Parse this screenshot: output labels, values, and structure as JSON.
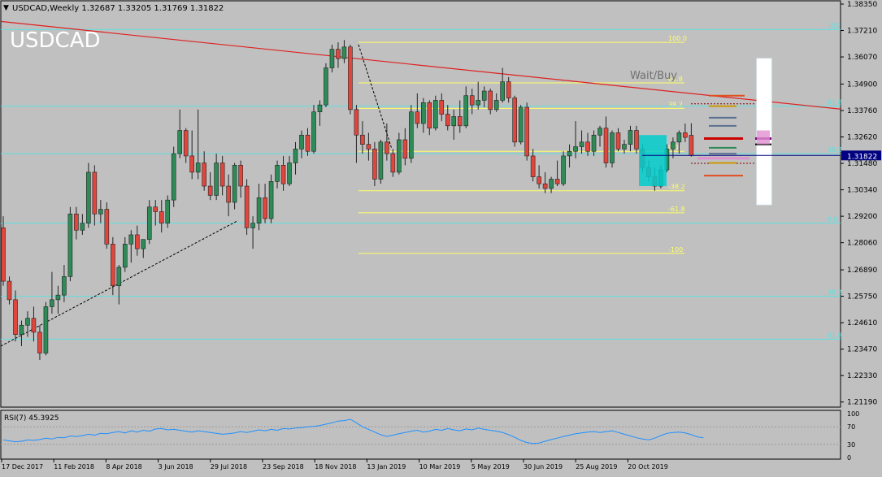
{
  "header": {
    "symbol_line": "USDCAD,Weekly  1.32687 1.33205 1.31769 1.31822",
    "watermark": "USDCAD",
    "signal_text": "Wait/Buy"
  },
  "price_axis": {
    "ticks": [
      "1.38350",
      "1.37210",
      "1.36070",
      "1.34900",
      "1.33760",
      "1.32620",
      "1.31480",
      "1.30340",
      "1.29200",
      "1.28060",
      "1.26890",
      "1.25750",
      "1.24610",
      "1.23470",
      "1.22330",
      "1.21190"
    ],
    "current_price_label": "1.31822"
  },
  "time_axis": {
    "labels": [
      "17 Dec 2017",
      "11 Feb 2018",
      "8 Apr 2018",
      "3 Jun 2018",
      "29 Jul 2018",
      "23 Sep 2018",
      "18 Nov 2018",
      "13 Jan 2019",
      "10 Mar 2019",
      "5 May 2019",
      "30 Jun 2019",
      "25 Aug 2019",
      "20 Oct 2019"
    ]
  },
  "fib_labels": {
    "main": [
      "100.0",
      "61.8",
      "38.2",
      "0.0",
      "-38.2",
      "-61.8",
      "-100"
    ],
    "cyan": [
      "100",
      "61.8",
      "38.2",
      "0.0",
      "38.2",
      "61.8"
    ]
  },
  "rsi": {
    "title": "RSI(7) 45.3925",
    "levels": [
      "100",
      "70",
      "30",
      "0"
    ],
    "values": [
      40,
      38,
      36,
      37,
      40,
      39,
      41,
      44,
      42,
      46,
      45,
      49,
      48,
      50,
      53,
      51,
      55,
      54,
      57,
      59,
      56,
      61,
      58,
      62,
      60,
      65,
      66,
      63,
      64,
      62,
      60,
      58,
      61,
      59,
      57,
      55,
      53,
      54,
      56,
      59,
      57,
      60,
      63,
      61,
      64,
      62,
      66,
      65,
      67,
      68,
      70,
      71,
      73,
      76,
      79,
      83,
      84,
      87,
      79,
      70,
      64,
      58,
      52,
      48,
      51,
      54,
      57,
      60,
      62,
      58,
      60,
      64,
      62,
      66,
      63,
      61,
      65,
      63,
      67,
      64,
      62,
      60,
      57,
      52,
      46,
      39,
      34,
      32,
      33,
      37,
      41,
      44,
      48,
      51,
      54,
      56,
      58,
      59,
      57,
      59,
      61,
      57,
      53,
      49,
      45,
      42,
      40,
      44,
      50,
      55,
      57,
      58,
      56,
      52,
      47,
      45
    ]
  },
  "chart_data": {
    "type": "candlestick",
    "title": "USDCAD,Weekly",
    "ylim": [
      1.2097,
      1.3849
    ],
    "candles": [
      {
        "o": 1.287,
        "h": 1.292,
        "l": 1.262,
        "c": 1.264
      },
      {
        "o": 1.264,
        "h": 1.266,
        "l": 1.254,
        "c": 1.256
      },
      {
        "o": 1.256,
        "h": 1.26,
        "l": 1.238,
        "c": 1.241
      },
      {
        "o": 1.241,
        "h": 1.247,
        "l": 1.236,
        "c": 1.245
      },
      {
        "o": 1.245,
        "h": 1.251,
        "l": 1.24,
        "c": 1.248
      },
      {
        "o": 1.248,
        "h": 1.253,
        "l": 1.238,
        "c": 1.242
      },
      {
        "o": 1.242,
        "h": 1.245,
        "l": 1.23,
        "c": 1.233
      },
      {
        "o": 1.233,
        "h": 1.255,
        "l": 1.232,
        "c": 1.253
      },
      {
        "o": 1.253,
        "h": 1.268,
        "l": 1.25,
        "c": 1.256
      },
      {
        "o": 1.256,
        "h": 1.262,
        "l": 1.25,
        "c": 1.258
      },
      {
        "o": 1.258,
        "h": 1.271,
        "l": 1.255,
        "c": 1.266
      },
      {
        "o": 1.266,
        "h": 1.296,
        "l": 1.264,
        "c": 1.293
      },
      {
        "o": 1.293,
        "h": 1.296,
        "l": 1.282,
        "c": 1.286
      },
      {
        "o": 1.286,
        "h": 1.293,
        "l": 1.284,
        "c": 1.289
      },
      {
        "o": 1.289,
        "h": 1.315,
        "l": 1.287,
        "c": 1.311
      },
      {
        "o": 1.311,
        "h": 1.314,
        "l": 1.288,
        "c": 1.293
      },
      {
        "o": 1.293,
        "h": 1.299,
        "l": 1.289,
        "c": 1.295
      },
      {
        "o": 1.295,
        "h": 1.298,
        "l": 1.278,
        "c": 1.28
      },
      {
        "o": 1.28,
        "h": 1.283,
        "l": 1.258,
        "c": 1.262
      },
      {
        "o": 1.262,
        "h": 1.271,
        "l": 1.254,
        "c": 1.27
      },
      {
        "o": 1.27,
        "h": 1.283,
        "l": 1.268,
        "c": 1.28
      },
      {
        "o": 1.28,
        "h": 1.286,
        "l": 1.272,
        "c": 1.284
      },
      {
        "o": 1.284,
        "h": 1.288,
        "l": 1.275,
        "c": 1.278
      },
      {
        "o": 1.278,
        "h": 1.282,
        "l": 1.274,
        "c": 1.282
      },
      {
        "o": 1.282,
        "h": 1.299,
        "l": 1.28,
        "c": 1.296
      },
      {
        "o": 1.296,
        "h": 1.299,
        "l": 1.288,
        "c": 1.294
      },
      {
        "o": 1.294,
        "h": 1.299,
        "l": 1.285,
        "c": 1.289
      },
      {
        "o": 1.289,
        "h": 1.301,
        "l": 1.287,
        "c": 1.299
      },
      {
        "o": 1.299,
        "h": 1.322,
        "l": 1.296,
        "c": 1.319
      },
      {
        "o": 1.319,
        "h": 1.338,
        "l": 1.317,
        "c": 1.329
      },
      {
        "o": 1.329,
        "h": 1.33,
        "l": 1.315,
        "c": 1.318
      },
      {
        "o": 1.318,
        "h": 1.329,
        "l": 1.308,
        "c": 1.311
      },
      {
        "o": 1.311,
        "h": 1.338,
        "l": 1.308,
        "c": 1.315
      },
      {
        "o": 1.315,
        "h": 1.32,
        "l": 1.303,
        "c": 1.305
      },
      {
        "o": 1.305,
        "h": 1.311,
        "l": 1.299,
        "c": 1.301
      },
      {
        "o": 1.301,
        "h": 1.319,
        "l": 1.299,
        "c": 1.315
      },
      {
        "o": 1.315,
        "h": 1.318,
        "l": 1.301,
        "c": 1.305
      },
      {
        "o": 1.305,
        "h": 1.31,
        "l": 1.292,
        "c": 1.298
      },
      {
        "o": 1.298,
        "h": 1.315,
        "l": 1.295,
        "c": 1.314
      },
      {
        "o": 1.314,
        "h": 1.316,
        "l": 1.3,
        "c": 1.305
      },
      {
        "o": 1.305,
        "h": 1.308,
        "l": 1.284,
        "c": 1.287
      },
      {
        "o": 1.287,
        "h": 1.292,
        "l": 1.278,
        "c": 1.289
      },
      {
        "o": 1.289,
        "h": 1.306,
        "l": 1.286,
        "c": 1.3
      },
      {
        "o": 1.3,
        "h": 1.306,
        "l": 1.289,
        "c": 1.291
      },
      {
        "o": 1.291,
        "h": 1.31,
        "l": 1.289,
        "c": 1.307
      },
      {
        "o": 1.307,
        "h": 1.316,
        "l": 1.304,
        "c": 1.314
      },
      {
        "o": 1.314,
        "h": 1.318,
        "l": 1.303,
        "c": 1.306
      },
      {
        "o": 1.306,
        "h": 1.318,
        "l": 1.305,
        "c": 1.315
      },
      {
        "o": 1.315,
        "h": 1.324,
        "l": 1.31,
        "c": 1.321
      },
      {
        "o": 1.321,
        "h": 1.329,
        "l": 1.317,
        "c": 1.327
      },
      {
        "o": 1.327,
        "h": 1.33,
        "l": 1.318,
        "c": 1.32
      },
      {
        "o": 1.32,
        "h": 1.34,
        "l": 1.319,
        "c": 1.337
      },
      {
        "o": 1.337,
        "h": 1.342,
        "l": 1.331,
        "c": 1.34
      },
      {
        "o": 1.34,
        "h": 1.358,
        "l": 1.339,
        "c": 1.356
      },
      {
        "o": 1.356,
        "h": 1.366,
        "l": 1.354,
        "c": 1.364
      },
      {
        "o": 1.364,
        "h": 1.367,
        "l": 1.356,
        "c": 1.36
      },
      {
        "o": 1.36,
        "h": 1.368,
        "l": 1.358,
        "c": 1.365
      },
      {
        "o": 1.365,
        "h": 1.366,
        "l": 1.336,
        "c": 1.338
      },
      {
        "o": 1.338,
        "h": 1.34,
        "l": 1.315,
        "c": 1.327
      },
      {
        "o": 1.327,
        "h": 1.333,
        "l": 1.319,
        "c": 1.323
      },
      {
        "o": 1.323,
        "h": 1.328,
        "l": 1.316,
        "c": 1.321
      },
      {
        "o": 1.321,
        "h": 1.324,
        "l": 1.305,
        "c": 1.308
      },
      {
        "o": 1.308,
        "h": 1.325,
        "l": 1.306,
        "c": 1.324
      },
      {
        "o": 1.324,
        "h": 1.332,
        "l": 1.316,
        "c": 1.319
      },
      {
        "o": 1.319,
        "h": 1.321,
        "l": 1.309,
        "c": 1.311
      },
      {
        "o": 1.311,
        "h": 1.328,
        "l": 1.31,
        "c": 1.325
      },
      {
        "o": 1.325,
        "h": 1.33,
        "l": 1.314,
        "c": 1.317
      },
      {
        "o": 1.317,
        "h": 1.34,
        "l": 1.315,
        "c": 1.337
      },
      {
        "o": 1.337,
        "h": 1.345,
        "l": 1.33,
        "c": 1.332
      },
      {
        "o": 1.332,
        "h": 1.343,
        "l": 1.328,
        "c": 1.341
      },
      {
        "o": 1.341,
        "h": 1.342,
        "l": 1.327,
        "c": 1.33
      },
      {
        "o": 1.33,
        "h": 1.344,
        "l": 1.329,
        "c": 1.342
      },
      {
        "o": 1.342,
        "h": 1.345,
        "l": 1.333,
        "c": 1.336
      },
      {
        "o": 1.336,
        "h": 1.34,
        "l": 1.329,
        "c": 1.331
      },
      {
        "o": 1.331,
        "h": 1.338,
        "l": 1.325,
        "c": 1.335
      },
      {
        "o": 1.335,
        "h": 1.342,
        "l": 1.328,
        "c": 1.331
      },
      {
        "o": 1.331,
        "h": 1.348,
        "l": 1.33,
        "c": 1.344
      },
      {
        "o": 1.344,
        "h": 1.347,
        "l": 1.336,
        "c": 1.34
      },
      {
        "o": 1.34,
        "h": 1.35,
        "l": 1.338,
        "c": 1.342
      },
      {
        "o": 1.342,
        "h": 1.348,
        "l": 1.339,
        "c": 1.346
      },
      {
        "o": 1.346,
        "h": 1.347,
        "l": 1.336,
        "c": 1.338
      },
      {
        "o": 1.338,
        "h": 1.345,
        "l": 1.337,
        "c": 1.342
      },
      {
        "o": 1.342,
        "h": 1.356,
        "l": 1.341,
        "c": 1.35
      },
      {
        "o": 1.35,
        "h": 1.352,
        "l": 1.341,
        "c": 1.343
      },
      {
        "o": 1.343,
        "h": 1.344,
        "l": 1.322,
        "c": 1.324
      },
      {
        "o": 1.324,
        "h": 1.34,
        "l": 1.323,
        "c": 1.339
      },
      {
        "o": 1.339,
        "h": 1.341,
        "l": 1.316,
        "c": 1.318
      },
      {
        "o": 1.318,
        "h": 1.321,
        "l": 1.307,
        "c": 1.309
      },
      {
        "o": 1.309,
        "h": 1.314,
        "l": 1.304,
        "c": 1.306
      },
      {
        "o": 1.306,
        "h": 1.311,
        "l": 1.302,
        "c": 1.304
      },
      {
        "o": 1.304,
        "h": 1.309,
        "l": 1.302,
        "c": 1.308
      },
      {
        "o": 1.308,
        "h": 1.316,
        "l": 1.305,
        "c": 1.306
      },
      {
        "o": 1.306,
        "h": 1.32,
        "l": 1.305,
        "c": 1.318
      },
      {
        "o": 1.318,
        "h": 1.323,
        "l": 1.313,
        "c": 1.32
      },
      {
        "o": 1.32,
        "h": 1.333,
        "l": 1.317,
        "c": 1.322
      },
      {
        "o": 1.322,
        "h": 1.329,
        "l": 1.319,
        "c": 1.324
      },
      {
        "o": 1.324,
        "h": 1.328,
        "l": 1.318,
        "c": 1.32
      },
      {
        "o": 1.32,
        "h": 1.329,
        "l": 1.318,
        "c": 1.327
      },
      {
        "o": 1.327,
        "h": 1.331,
        "l": 1.322,
        "c": 1.33
      },
      {
        "o": 1.33,
        "h": 1.335,
        "l": 1.313,
        "c": 1.315
      },
      {
        "o": 1.315,
        "h": 1.329,
        "l": 1.313,
        "c": 1.328
      },
      {
        "o": 1.328,
        "h": 1.33,
        "l": 1.32,
        "c": 1.321
      },
      {
        "o": 1.321,
        "h": 1.325,
        "l": 1.319,
        "c": 1.323
      },
      {
        "o": 1.323,
        "h": 1.331,
        "l": 1.32,
        "c": 1.329
      },
      {
        "o": 1.329,
        "h": 1.331,
        "l": 1.319,
        "c": 1.321
      },
      {
        "o": 1.321,
        "h": 1.323,
        "l": 1.311,
        "c": 1.313
      },
      {
        "o": 1.313,
        "h": 1.316,
        "l": 1.307,
        "c": 1.309
      },
      {
        "o": 1.309,
        "h": 1.313,
        "l": 1.303,
        "c": 1.305
      },
      {
        "o": 1.305,
        "h": 1.314,
        "l": 1.304,
        "c": 1.312
      },
      {
        "o": 1.312,
        "h": 1.323,
        "l": 1.311,
        "c": 1.321
      },
      {
        "o": 1.321,
        "h": 1.326,
        "l": 1.317,
        "c": 1.324
      },
      {
        "o": 1.324,
        "h": 1.329,
        "l": 1.319,
        "c": 1.328
      },
      {
        "o": 1.328,
        "h": 1.332,
        "l": 1.324,
        "c": 1.326
      },
      {
        "o": 1.3269,
        "h": 1.3321,
        "l": 1.3177,
        "c": 1.3182
      }
    ],
    "fib_main_levels": [
      1.367,
      1.3495,
      1.3385,
      1.32,
      1.303,
      1.2935,
      1.276
    ],
    "fib_cyan_levels": [
      1.3725,
      1.3395,
      1.319,
      1.289,
      1.2575,
      1.239
    ],
    "trendline_red": {
      "from": [
        1.376,
        0
      ],
      "to": [
        1.3382,
        1
      ]
    },
    "current_price": 1.31822,
    "rsi_levels": [
      100,
      70,
      30,
      0
    ],
    "colors": {
      "bull": "#2e8b57",
      "bear": "#e0463c",
      "fib_main": "#ffff66",
      "fib_cyan": "#5ee0e0",
      "trend": "#e02020",
      "rsi": "#1e90ff"
    }
  }
}
